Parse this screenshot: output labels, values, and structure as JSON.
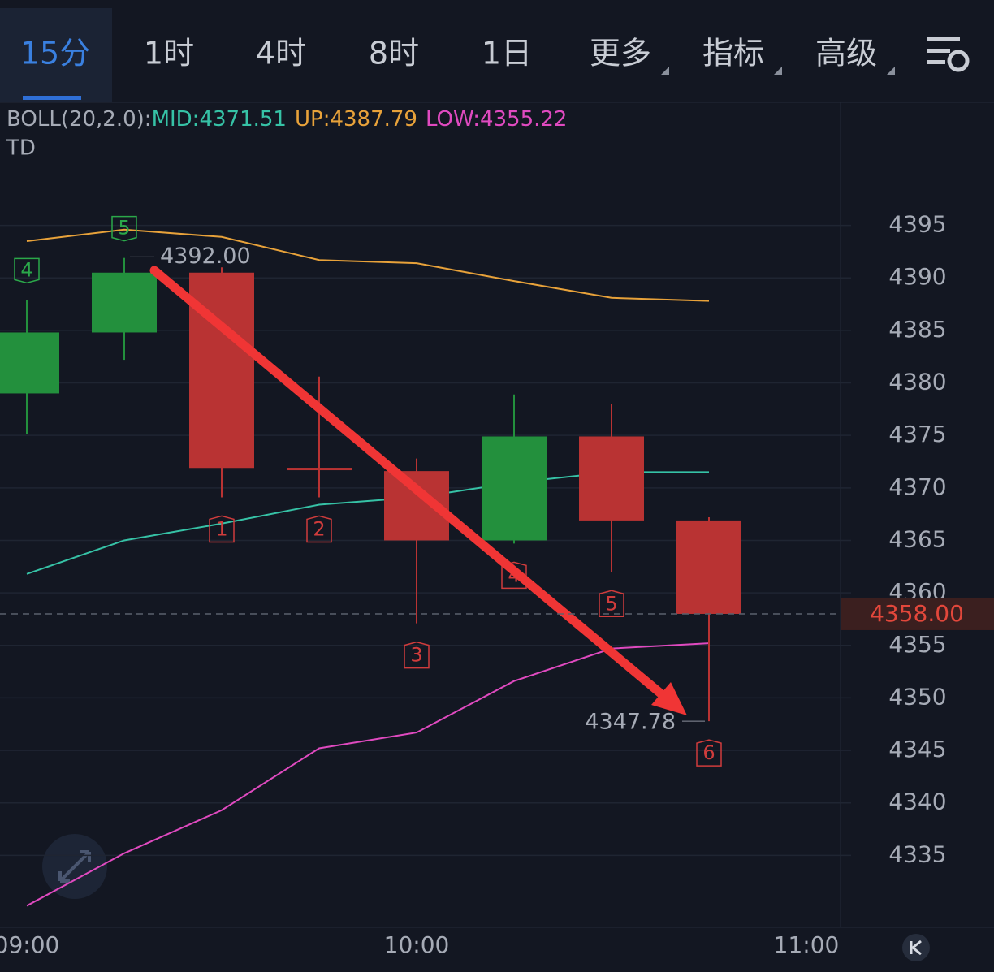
{
  "tabs": [
    "15分",
    "1时",
    "4时",
    "8时",
    "1日",
    "更多",
    "指标",
    "高级"
  ],
  "active_tab": "15分",
  "chart_data": {
    "type": "candlestick",
    "indicator": {
      "prefix": "BOLL(20,2.0):",
      "mid_label": "MID:",
      "mid": 4371.51,
      "up_label": "UP:",
      "up": 4387.79,
      "low_label": "LOW:",
      "low": 4355.22
    },
    "td_title": "TD",
    "xticks": [
      "09:00",
      "10:00",
      "11:00"
    ],
    "open": [
      4379.0,
      4384.8,
      4390.5,
      4371.8,
      4371.6,
      4365.0,
      4374.9,
      4366.9
    ],
    "high": [
      4387.9,
      4391.9,
      4391.0,
      4380.6,
      4372.8,
      4378.9,
      4378.0,
      4367.2
    ],
    "low": [
      4375.1,
      4382.2,
      4369.1,
      4369.1,
      4357.1,
      4364.7,
      4362.0,
      4347.78
    ],
    "close": [
      4384.8,
      4390.5,
      4371.9,
      4371.8,
      4365.0,
      4374.9,
      4366.9,
      4358.0
    ],
    "up_color": "#23903d",
    "down_color": "#b93333",
    "series": [
      {
        "name": "UP",
        "color": "#e8a23a",
        "values": [
          4393.5,
          4394.6,
          4393.9,
          4391.7,
          4391.4,
          4389.7,
          4388.1,
          4387.8
        ]
      },
      {
        "name": "MID",
        "color": "#36c2a6",
        "values": [
          4361.8,
          4365.0,
          4366.6,
          4368.4,
          4369.1,
          4370.5,
          4371.5,
          4371.5
        ]
      },
      {
        "name": "LOW",
        "color": "#e04ac0",
        "values": [
          4330.2,
          4335.2,
          4339.3,
          4345.2,
          4346.7,
          4351.6,
          4354.7,
          4355.2
        ]
      }
    ],
    "td_labels": [
      "4",
      "5",
      "1",
      "2",
      "3",
      "4",
      "5",
      "6"
    ],
    "td_sides": [
      "above",
      "above",
      "below",
      "below",
      "below",
      "below",
      "below",
      "below"
    ],
    "high_marker": {
      "value": 4392,
      "label": "4392.00"
    },
    "low_marker": {
      "value": 4347.78,
      "label": "4347.78"
    },
    "last_price": {
      "value": 4358,
      "label": "4358.00"
    },
    "ylim": [
      4328.3,
      4406.8
    ],
    "yticks": [
      4395,
      4390,
      4385,
      4380,
      4375,
      4370,
      4365,
      4360,
      4355,
      4350,
      4345,
      4340,
      4335
    ],
    "grid": true
  }
}
